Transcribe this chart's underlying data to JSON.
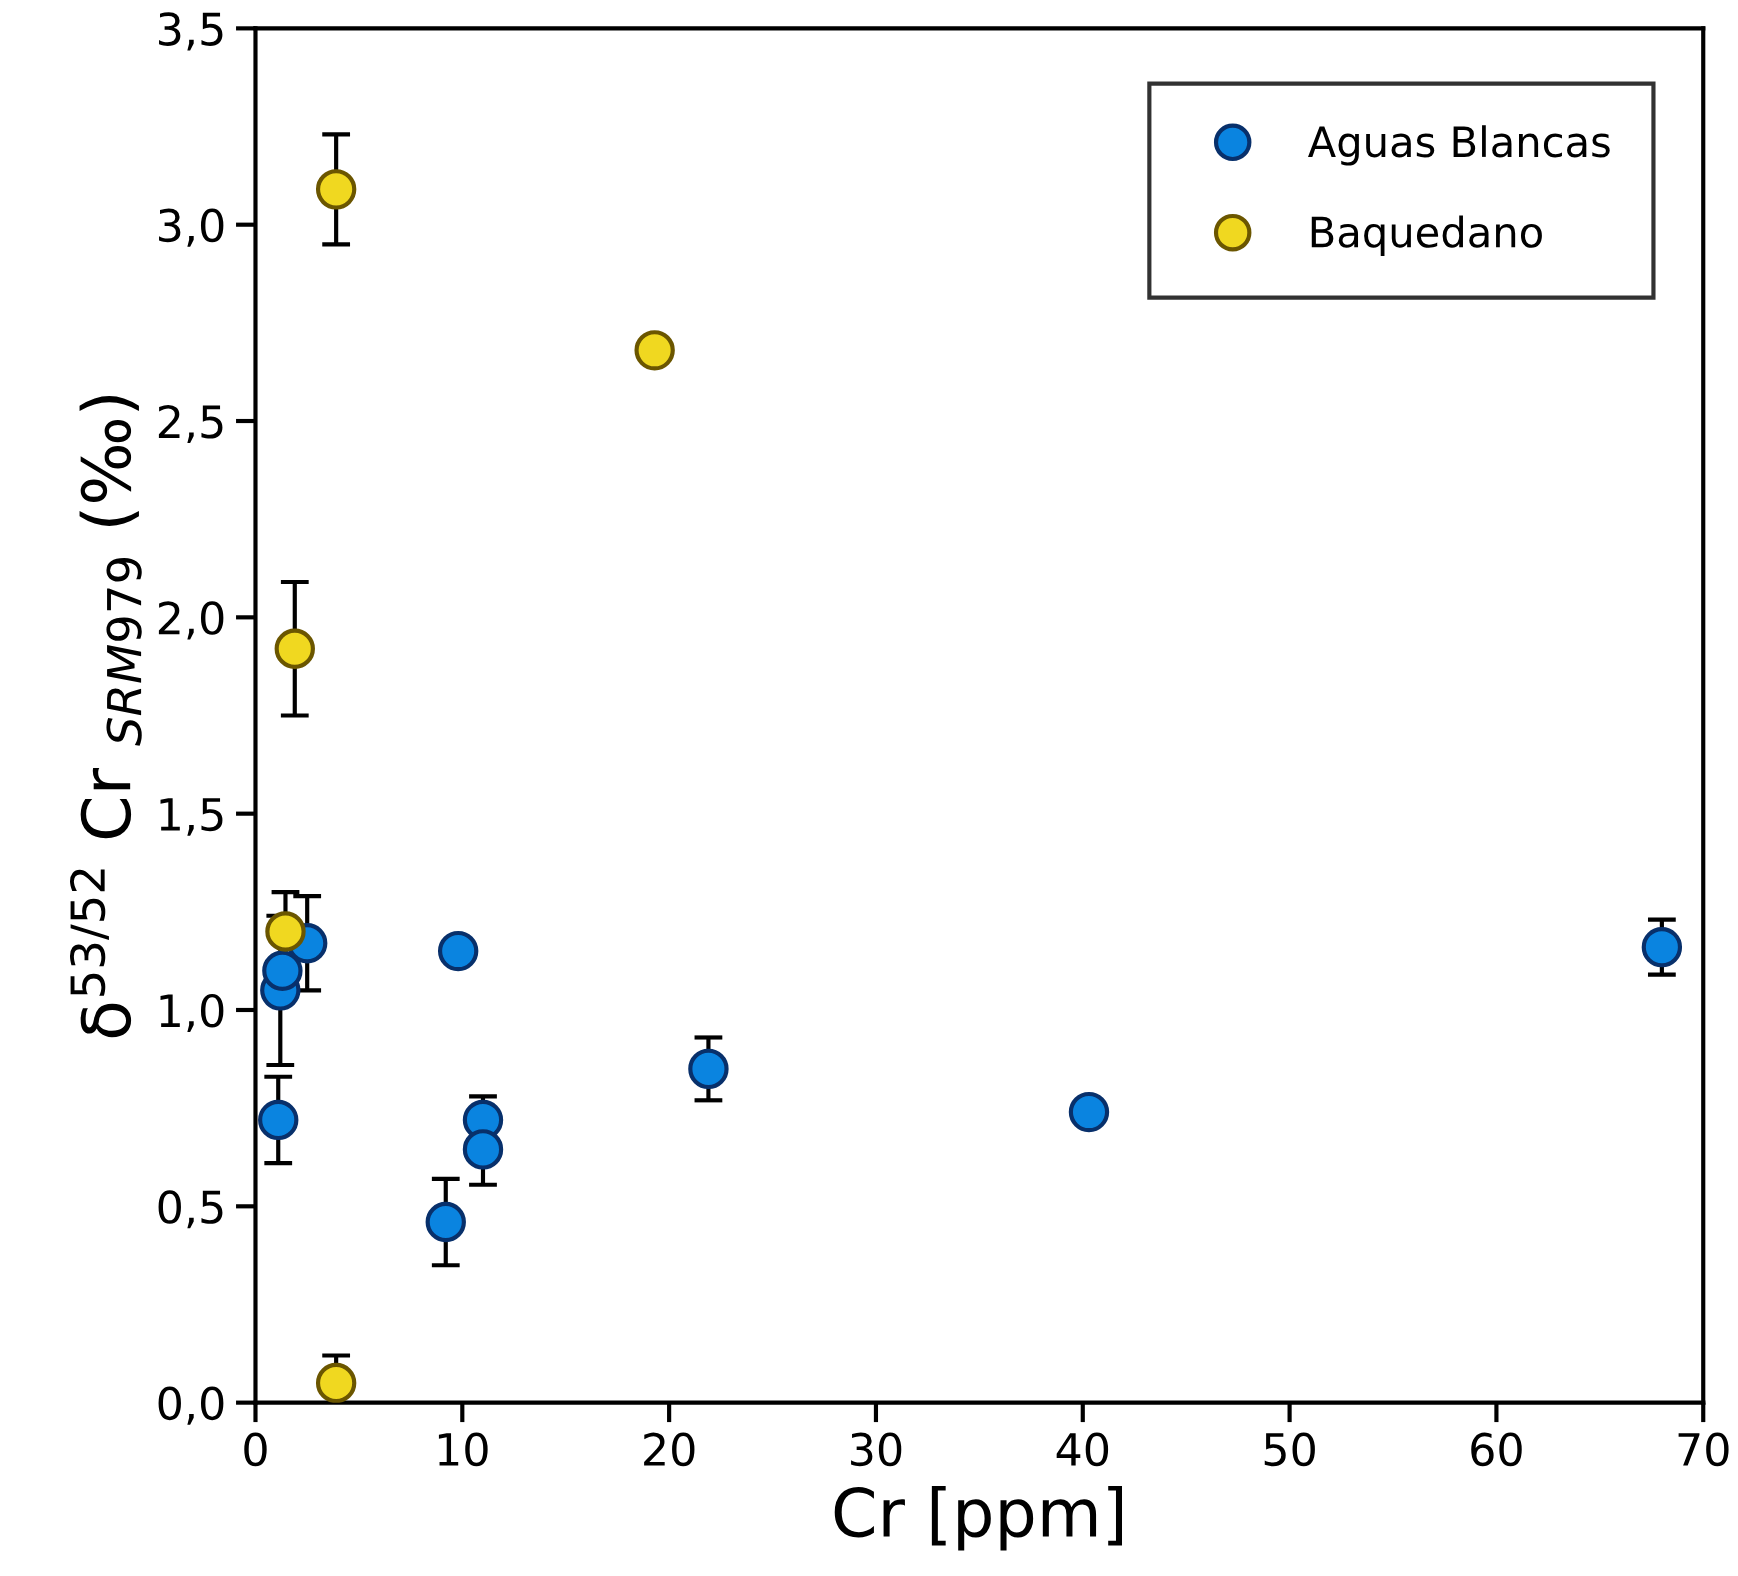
{
  "chart_data": {
    "type": "scatter",
    "xlabel": "Cr [ppm]",
    "ylabel": "δ$^{53/52}$ Cr $_{SRM979}$ (‰)",
    "xlim": [
      0,
      70
    ],
    "xticks": [
      0,
      10,
      20,
      30,
      40,
      50,
      60,
      70
    ],
    "ylim": [
      0,
      3.5
    ],
    "yticks": [
      {
        "value": 0,
        "label": "0,0"
      },
      {
        "value": 0.5,
        "label": "0,5"
      },
      {
        "value": 1,
        "label": "1,0"
      },
      {
        "value": 1.5,
        "label": "1,5"
      },
      {
        "value": 2,
        "label": "2,0"
      },
      {
        "value": 2.5,
        "label": "2,5"
      },
      {
        "value": 3,
        "label": "3,0"
      },
      {
        "value": 3.5,
        "label": "3,5"
      }
    ],
    "grid": false,
    "legend": "top right",
    "marker": "circle",
    "series": [
      {
        "name": "Aguas Blancas",
        "color": "#0a84e0",
        "x": [
          1.1,
          1.2,
          1.3,
          2.5,
          9.8,
          11.0,
          11.0,
          9.2,
          21.9,
          40.3,
          68.0
        ],
        "values": [
          0.72,
          1.05,
          1.1,
          1.17,
          1.15,
          0.72,
          0.645,
          0.46,
          0.85,
          0.74,
          1.16
        ],
        "errors": [
          0.11,
          0.19,
          null,
          0.12,
          null,
          0.06,
          0.09,
          0.11,
          0.08,
          null,
          0.07
        ]
      },
      {
        "name": "Baquedano",
        "color": "#f0d820",
        "x": [
          1.45,
          3.9,
          3.9,
          19.3,
          1.9
        ],
        "values": [
          1.2,
          0.05,
          3.09,
          2.68,
          1.92
        ],
        "errors": [
          0.1,
          0.07,
          0.14,
          null,
          0.17
        ]
      }
    ]
  }
}
